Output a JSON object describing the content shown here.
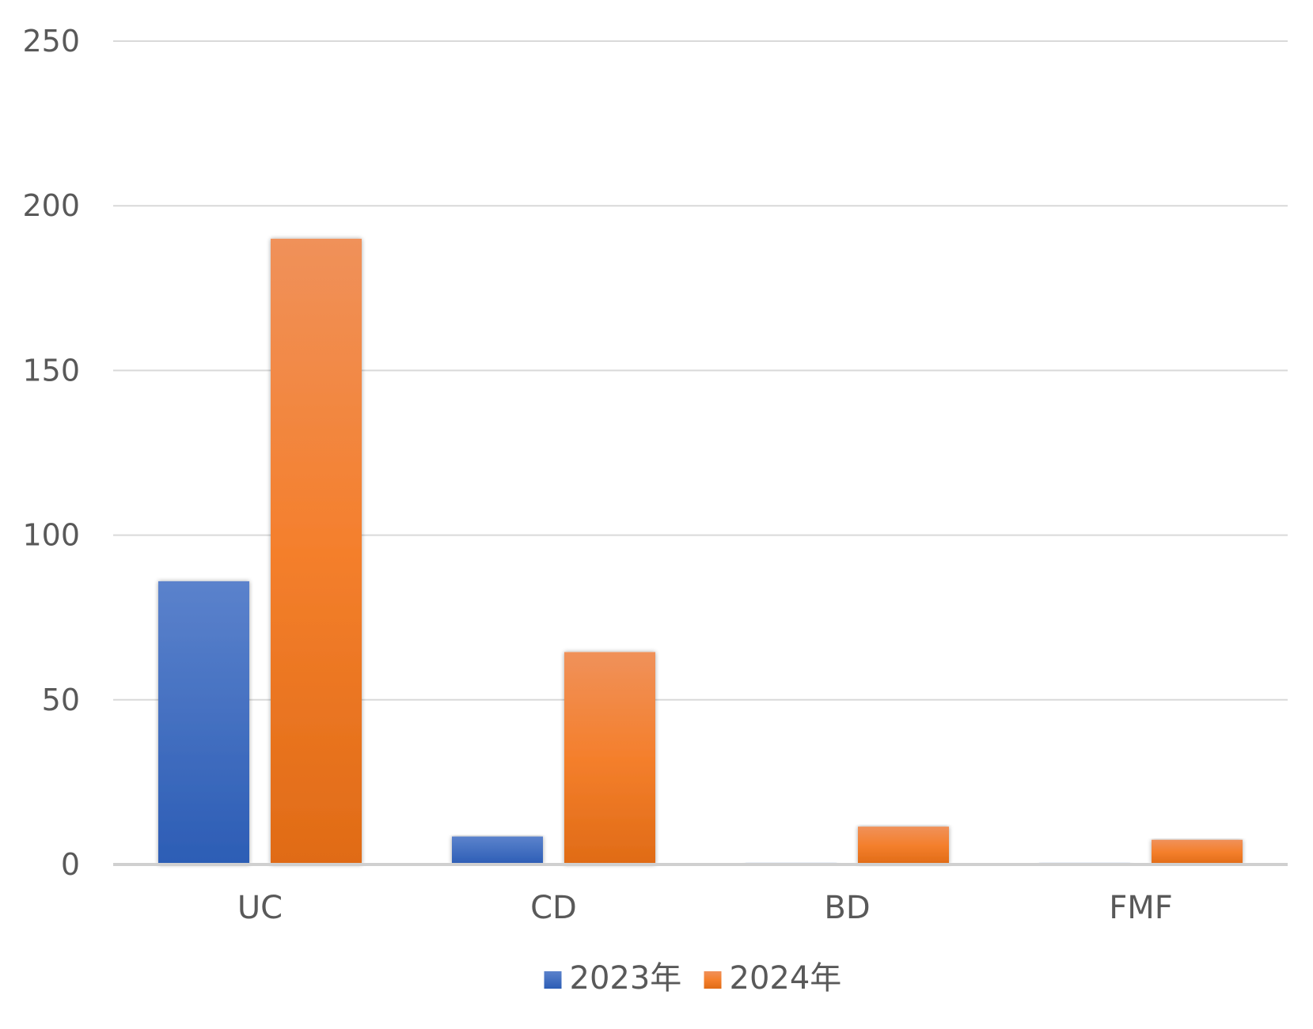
{
  "chart_data": {
    "type": "bar",
    "categories": [
      "UC",
      "CD",
      "BD",
      "FMF"
    ],
    "series": [
      {
        "name": "2023年",
        "values": [
          86,
          8.5,
          0.5,
          0.5
        ],
        "color": "#4472C4"
      },
      {
        "name": "2024年",
        "values": [
          190,
          64.5,
          11.5,
          7.5
        ],
        "color": "#ED7D31"
      }
    ],
    "ylim": [
      0,
      250
    ],
    "yticks": [
      0,
      50,
      100,
      150,
      200,
      250
    ],
    "grid": true,
    "legend": "bottom-center",
    "title": "",
    "xlabel": "",
    "ylabel": ""
  }
}
